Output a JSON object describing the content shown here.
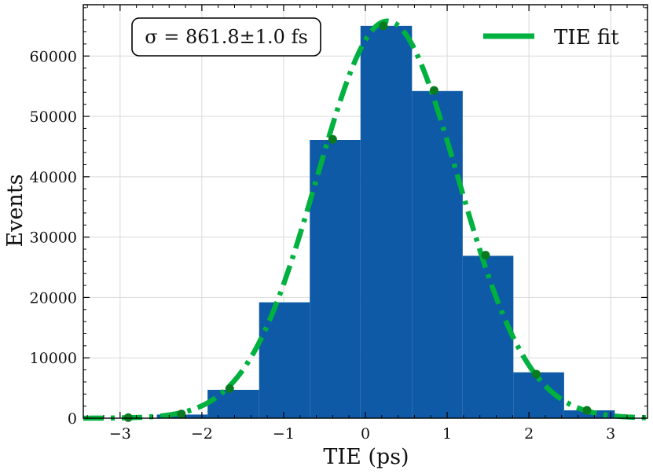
{
  "chart_data": {
    "type": "bar",
    "xlabel": "TIE (ps)",
    "ylabel": "Events",
    "xlim": [
      -3.45,
      3.45
    ],
    "ylim": [
      0,
      68500
    ],
    "xticks": [
      -3,
      -2,
      -1,
      0,
      1,
      2,
      3
    ],
    "xtick_labels": [
      "−3",
      "−2",
      "−1",
      "0",
      "1",
      "2",
      "3"
    ],
    "yticks": [
      0,
      10000,
      20000,
      30000,
      40000,
      50000,
      60000
    ],
    "ytick_labels": [
      "0",
      "10000",
      "20000",
      "30000",
      "40000",
      "50000",
      "60000"
    ],
    "grid": true,
    "histogram": {
      "color": "#0e5aa7",
      "bins": [
        {
          "x0": -2.55,
          "x1": -1.93,
          "value": 600
        },
        {
          "x0": -1.93,
          "x1": -1.3,
          "value": 4700
        },
        {
          "x0": -1.3,
          "x1": -0.68,
          "value": 19200
        },
        {
          "x0": -0.68,
          "x1": -0.06,
          "value": 46100
        },
        {
          "x0": -0.06,
          "x1": 0.57,
          "value": 65000
        },
        {
          "x0": 0.57,
          "x1": 1.19,
          "value": 54200
        },
        {
          "x0": 1.19,
          "x1": 1.81,
          "value": 26900
        },
        {
          "x0": 1.81,
          "x1": 2.43,
          "value": 7600
        },
        {
          "x0": 2.43,
          "x1": 3.05,
          "value": 1300
        }
      ]
    },
    "series": [
      {
        "name": "TIE fit",
        "kind": "gaussian-fit",
        "color": "#00b140",
        "amplitude": 65800,
        "mean": 0.27,
        "sigma": 0.8618
      }
    ],
    "markers": {
      "color": "#0a7a1f",
      "x": [
        -2.9,
        -2.25,
        -1.66,
        -0.4,
        0.22,
        0.84,
        1.47,
        2.09,
        2.71
      ],
      "y": [
        100,
        700,
        4900,
        46200,
        65000,
        54300,
        27000,
        7300,
        1300
      ]
    },
    "annotation": "σ = 861.8±1.0 fs",
    "legend": {
      "position": "top-right",
      "entries": [
        "TIE fit"
      ]
    }
  }
}
